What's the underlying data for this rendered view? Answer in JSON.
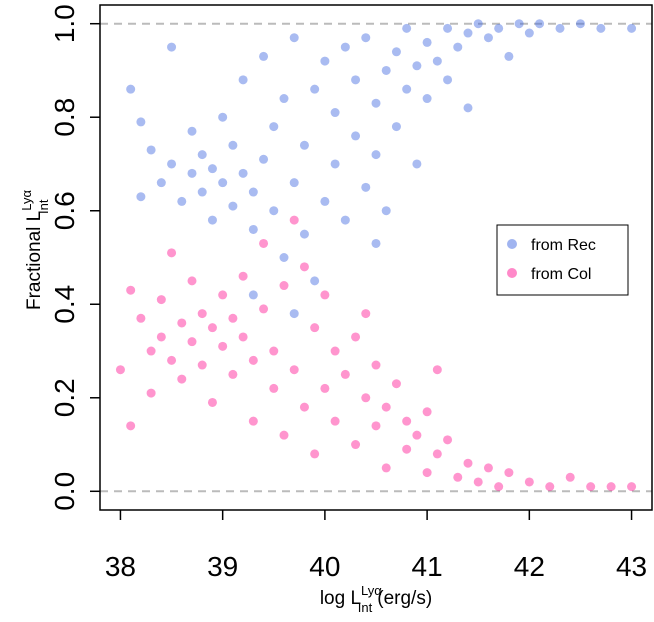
{
  "chart_data": {
    "type": "scatter",
    "xlabel": {
      "text": "log L",
      "sup": "Lyα",
      "sub": "Int",
      "unit": "(erg/s)"
    },
    "ylabel": {
      "text": "Fractional  L",
      "sup": "Lyα",
      "sub": "Int"
    },
    "xlim": [
      37.8,
      43.2
    ],
    "ylim": [
      -0.04,
      1.04
    ],
    "xticks": [
      38,
      39,
      40,
      41,
      42,
      43
    ],
    "yticks": [
      {
        "value": 0,
        "label": "0.0"
      },
      {
        "value": 0.2,
        "label": "0.2"
      },
      {
        "value": 0.4,
        "label": "0.4"
      },
      {
        "value": 0.6,
        "label": "0.6"
      },
      {
        "value": 0.8,
        "label": "0.8"
      },
      {
        "value": 1,
        "label": "1.0"
      }
    ],
    "hlines": [
      0,
      1
    ],
    "legend": "right",
    "series": [
      {
        "name": "from Rec",
        "color": "#4169E1",
        "x": [
          38.1,
          38.2,
          38.3,
          38.4,
          38.5,
          38.5,
          38.6,
          38.7,
          38.7,
          38.8,
          38.8,
          38.9,
          38.9,
          39.0,
          39.0,
          39.1,
          39.1,
          39.2,
          39.2,
          39.3,
          39.3,
          39.4,
          39.4,
          39.5,
          39.5,
          39.6,
          39.6,
          39.7,
          39.7,
          39.8,
          39.8,
          39.9,
          39.9,
          40.0,
          40.0,
          40.1,
          40.1,
          40.2,
          40.2,
          40.3,
          40.3,
          40.4,
          40.4,
          40.5,
          40.5,
          40.6,
          40.6,
          40.7,
          40.7,
          40.8,
          40.8,
          40.9,
          40.9,
          41.0,
          41.0,
          41.1,
          41.2,
          41.2,
          41.3,
          41.4,
          41.4,
          41.5,
          41.6,
          41.7,
          41.8,
          41.9,
          42.0,
          42.1,
          42.3,
          42.5,
          42.7,
          43.0,
          39.3,
          39.7,
          38.2,
          40.5
        ],
        "y": [
          0.86,
          0.63,
          0.73,
          0.66,
          0.7,
          0.95,
          0.62,
          0.68,
          0.77,
          0.64,
          0.72,
          0.58,
          0.69,
          0.66,
          0.8,
          0.61,
          0.74,
          0.68,
          0.88,
          0.56,
          0.64,
          0.71,
          0.93,
          0.6,
          0.78,
          0.5,
          0.84,
          0.66,
          0.97,
          0.55,
          0.74,
          0.45,
          0.86,
          0.62,
          0.92,
          0.7,
          0.81,
          0.58,
          0.95,
          0.76,
          0.88,
          0.65,
          0.97,
          0.83,
          0.72,
          0.9,
          0.6,
          0.94,
          0.78,
          0.86,
          0.99,
          0.91,
          0.7,
          0.96,
          0.84,
          0.92,
          0.99,
          0.88,
          0.95,
          0.98,
          0.82,
          1.0,
          0.97,
          0.99,
          0.93,
          1.0,
          0.98,
          1.0,
          0.99,
          1.0,
          0.99,
          0.99,
          0.42,
          0.38,
          0.79,
          0.53
        ]
      },
      {
        "name": "from Col",
        "color": "#FF1493",
        "x": [
          38.0,
          38.1,
          38.1,
          38.2,
          38.3,
          38.3,
          38.4,
          38.4,
          38.5,
          38.5,
          38.6,
          38.6,
          38.7,
          38.7,
          38.8,
          38.8,
          38.9,
          38.9,
          39.0,
          39.0,
          39.1,
          39.1,
          39.2,
          39.2,
          39.3,
          39.3,
          39.4,
          39.4,
          39.5,
          39.5,
          39.6,
          39.6,
          39.7,
          39.7,
          39.8,
          39.8,
          39.9,
          39.9,
          40.0,
          40.0,
          40.1,
          40.1,
          40.2,
          40.3,
          40.3,
          40.4,
          40.5,
          40.5,
          40.6,
          40.6,
          40.7,
          40.8,
          40.8,
          40.9,
          41.0,
          41.0,
          41.1,
          41.2,
          41.3,
          41.4,
          41.5,
          41.6,
          41.7,
          41.8,
          42.0,
          42.2,
          42.4,
          42.6,
          42.8,
          43.0,
          41.1,
          40.4
        ],
        "y": [
          0.26,
          0.43,
          0.14,
          0.37,
          0.3,
          0.21,
          0.33,
          0.41,
          0.28,
          0.51,
          0.36,
          0.24,
          0.32,
          0.45,
          0.38,
          0.27,
          0.35,
          0.19,
          0.42,
          0.31,
          0.37,
          0.25,
          0.33,
          0.46,
          0.28,
          0.15,
          0.39,
          0.53,
          0.3,
          0.22,
          0.44,
          0.12,
          0.58,
          0.26,
          0.48,
          0.18,
          0.35,
          0.08,
          0.22,
          0.42,
          0.15,
          0.3,
          0.25,
          0.1,
          0.33,
          0.2,
          0.14,
          0.27,
          0.05,
          0.18,
          0.23,
          0.09,
          0.15,
          0.12,
          0.04,
          0.17,
          0.08,
          0.11,
          0.03,
          0.06,
          0.02,
          0.05,
          0.01,
          0.04,
          0.02,
          0.01,
          0.03,
          0.01,
          0.01,
          0.01,
          0.26,
          0.38
        ]
      }
    ]
  }
}
